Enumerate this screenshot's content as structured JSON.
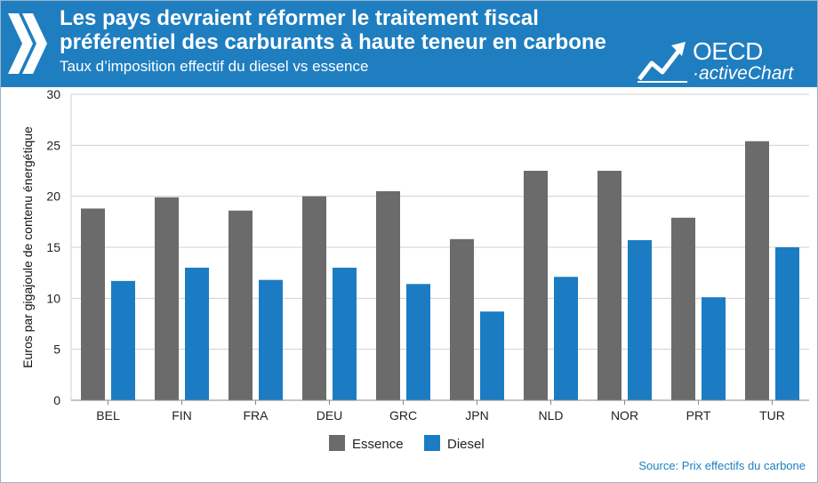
{
  "header": {
    "title_line1": "Les pays devraient réformer le traitement fiscal",
    "title_line2": "préférentiel des carburants à haute teneur en carbone",
    "subtitle": "Taux d’imposition effectif du diesel vs essence"
  },
  "logo": {
    "brand": "OECD",
    "product": "activeChart"
  },
  "source": "Source: Prix effectifs du carbone",
  "colors": {
    "header_bg": "#1f7ec0",
    "essence": "#6b6b6b",
    "diesel": "#1b7cc4"
  },
  "chart_data": {
    "type": "bar",
    "categories": [
      "BEL",
      "FIN",
      "FRA",
      "DEU",
      "GRC",
      "JPN",
      "NLD",
      "NOR",
      "PRT",
      "TUR"
    ],
    "series": [
      {
        "name": "Essence",
        "values": [
          18.8,
          19.9,
          18.6,
          20.0,
          20.5,
          15.8,
          22.5,
          22.5,
          17.9,
          25.4
        ]
      },
      {
        "name": "Diesel",
        "values": [
          11.7,
          13.0,
          11.8,
          13.0,
          11.4,
          8.7,
          12.1,
          15.7,
          10.1,
          15.0
        ]
      }
    ],
    "ylabel": "Euros par gigajoule de contenu énergétique",
    "ylim": [
      0,
      30
    ],
    "yticks": [
      0,
      5,
      10,
      15,
      20,
      25,
      30
    ],
    "grid": true,
    "legend": "bottom"
  }
}
